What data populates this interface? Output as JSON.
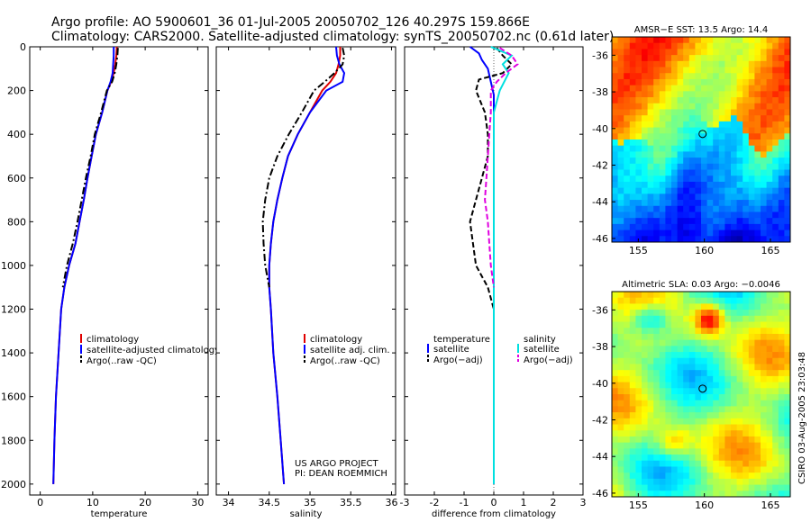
{
  "figure": {
    "title_line1": "Argo profile: AO 5900601_36 01-Jul-2005 20050702_126 40.297S 159.866E",
    "title_line2": "Climatology: CARS2000. Satellite-adjusted climatology: synTS_20050702.nc (0.61d later)",
    "project_line1": "US ARGO PROJECT",
    "project_line2": "PI: DEAN ROEMMICH",
    "credit": "CSIRO 03-Aug-2005 23:03:48"
  },
  "colors": {
    "climatology": "#e00000",
    "satellite": "#0000ff",
    "argo": "#000000",
    "salinity_satellite": "#00e0e0",
    "salinity_argo": "#e000e0"
  },
  "chart_data": [
    {
      "type": "line",
      "xlabel": "temperature",
      "ylabel": "",
      "xlim": [
        -2,
        32
      ],
      "ylim": [
        2050,
        0
      ],
      "y_inverted": true,
      "xticks": [
        "0",
        "10",
        "20",
        "30"
      ],
      "xtick_values": [
        0,
        10,
        20,
        30
      ],
      "yticks": [
        "0",
        "200",
        "400",
        "600",
        "800",
        "1000",
        "1200",
        "1400",
        "1600",
        "1800",
        "2000"
      ],
      "ytick_values": [
        0,
        200,
        400,
        600,
        800,
        1000,
        1200,
        1400,
        1600,
        1800,
        2000
      ],
      "legend": {
        "placement": "lower-right",
        "entries": [
          "climatology",
          "satellite-adjusted climatology",
          "Argo(..raw -QC)"
        ]
      },
      "series": [
        {
          "name": "climatology",
          "color": "#e00000",
          "dash": "solid",
          "x": [
            14.6,
            14.5,
            14.3,
            14.0,
            13.5,
            12.8,
            11.8,
            10.6,
            9.8,
            9.0,
            8.3,
            7.5,
            6.7,
            5.5,
            4.6,
            4.0,
            3.5,
            3.0,
            2.7,
            2.5
          ],
          "y": [
            0,
            40,
            80,
            120,
            160,
            200,
            300,
            400,
            500,
            600,
            700,
            800,
            900,
            1000,
            1100,
            1200,
            1400,
            1600,
            1800,
            2000
          ]
        },
        {
          "name": "satellite-adjusted climatology",
          "color": "#0000ff",
          "dash": "solid",
          "x": [
            14.0,
            14.0,
            13.9,
            13.8,
            13.4,
            12.8,
            11.8,
            10.6,
            9.8,
            9.0,
            8.3,
            7.5,
            6.7,
            5.5,
            4.6,
            4.0,
            3.5,
            3.0,
            2.7,
            2.5
          ],
          "y": [
            0,
            40,
            80,
            120,
            160,
            200,
            300,
            400,
            500,
            600,
            700,
            800,
            900,
            1000,
            1100,
            1200,
            1400,
            1600,
            1800,
            2000
          ]
        },
        {
          "name": "Argo(..raw -QC)",
          "color": "#000000",
          "dash": "dashdot",
          "x": [
            14.8,
            14.7,
            14.5,
            14.2,
            13.7,
            12.7,
            11.6,
            10.4,
            9.6,
            8.7,
            7.9,
            7.1,
            6.2,
            5.1,
            4.3
          ],
          "y": [
            5,
            40,
            80,
            120,
            160,
            200,
            300,
            400,
            500,
            600,
            700,
            800,
            900,
            1000,
            1100
          ]
        }
      ]
    },
    {
      "type": "line",
      "xlabel": "salinity",
      "xlim": [
        33.85,
        36.05
      ],
      "ylim": [
        2050,
        0
      ],
      "y_inverted": true,
      "xticks": [
        "34",
        "34.5",
        "35",
        "35.5",
        "36"
      ],
      "xtick_values": [
        34,
        34.5,
        35,
        35.5,
        36
      ],
      "legend": {
        "placement": "lower-right",
        "entries": [
          "climatology",
          "satellite adj. clim.",
          "Argo(..raw -QC)"
        ]
      },
      "series": [
        {
          "name": "climatology",
          "color": "#e00000",
          "dash": "solid",
          "x": [
            35.37,
            35.37,
            35.35,
            35.32,
            35.25,
            35.15,
            35.0,
            34.85,
            34.73,
            34.66,
            34.6,
            34.55,
            34.52,
            34.5,
            34.5,
            34.52,
            34.55,
            34.6,
            34.64,
            34.68
          ],
          "y": [
            0,
            40,
            80,
            120,
            160,
            200,
            300,
            400,
            500,
            600,
            700,
            800,
            900,
            1000,
            1100,
            1200,
            1400,
            1600,
            1800,
            2000
          ]
        },
        {
          "name": "satellite adj. clim.",
          "color": "#0000ff",
          "dash": "solid",
          "x": [
            35.32,
            35.33,
            35.36,
            35.42,
            35.4,
            35.2,
            35.0,
            34.85,
            34.73,
            34.66,
            34.6,
            34.55,
            34.52,
            34.5,
            34.5,
            34.52,
            34.55,
            34.6,
            34.64,
            34.68
          ],
          "y": [
            0,
            40,
            80,
            120,
            160,
            200,
            300,
            400,
            500,
            600,
            700,
            800,
            900,
            1000,
            1100,
            1200,
            1400,
            1600,
            1800,
            2000
          ]
        },
        {
          "name": "Argo(..raw -QC)",
          "color": "#000000",
          "dash": "dashdot",
          "x": [
            35.4,
            35.42,
            35.4,
            35.3,
            35.18,
            35.05,
            34.9,
            34.74,
            34.6,
            34.5,
            34.45,
            34.42,
            34.43,
            34.45,
            34.5
          ],
          "y": [
            5,
            40,
            80,
            120,
            160,
            200,
            300,
            400,
            500,
            600,
            700,
            800,
            900,
            1000,
            1100
          ]
        }
      ]
    },
    {
      "type": "line",
      "xlabel": "difference from climatology",
      "xlim": [
        -3,
        3
      ],
      "ylim": [
        2050,
        0
      ],
      "y_inverted": true,
      "xticks": [
        "-3",
        "-2",
        "-1",
        "0",
        "1",
        "2",
        "3"
      ],
      "xtick_values": [
        -3,
        -2,
        -1,
        0,
        1,
        2,
        3
      ],
      "legend": {
        "placement": "lower-center",
        "temperature_heading": "temperature",
        "salinity_heading": "salinity",
        "temperature_entries": [
          "satellite",
          "Argo(−adj)"
        ],
        "salinity_entries": [
          "satellite",
          "Argo(−adj)"
        ]
      },
      "series": [
        {
          "name": "temperature satellite",
          "color": "#0000ff",
          "dash": "solid",
          "x": [
            -0.8,
            -0.5,
            -0.4,
            -0.2,
            -0.1,
            0.0,
            0.0,
            0.0,
            0.0,
            0.0,
            0.0
          ],
          "y": [
            0,
            30,
            60,
            100,
            160,
            220,
            300,
            500,
            800,
            1200,
            2000
          ]
        },
        {
          "name": "temperature Argo(−adj)",
          "color": "#000000",
          "dash": "dashed",
          "x": [
            0.1,
            0.3,
            0.6,
            0.3,
            -0.5,
            -0.6,
            -0.3,
            -0.2,
            -0.2,
            -0.4,
            -0.6,
            -0.8,
            -0.7,
            -0.6,
            -0.2,
            0.0
          ],
          "y": [
            5,
            40,
            80,
            120,
            150,
            200,
            300,
            400,
            500,
            600,
            700,
            800,
            900,
            1000,
            1100,
            1200
          ]
        },
        {
          "name": "salinity satellite",
          "color": "#00e0e0",
          "dash": "solid",
          "x": [
            -0.1,
            0.6,
            0.3,
            0.5,
            0.2,
            0.0,
            0.0,
            0.0,
            0.0,
            0.0,
            0.0
          ],
          "y": [
            0,
            40,
            80,
            120,
            200,
            300,
            500,
            800,
            1200,
            1600,
            2000
          ]
        },
        {
          "name": "salinity Argo(−adj)",
          "color": "#e000e0",
          "dash": "dashed",
          "x": [
            0.2,
            0.6,
            0.8,
            0.4,
            0.1,
            -0.1,
            -0.1,
            -0.15,
            -0.2,
            -0.25,
            -0.3,
            -0.2,
            -0.15,
            -0.1,
            0.0
          ],
          "y": [
            5,
            40,
            80,
            120,
            160,
            200,
            300,
            400,
            500,
            600,
            700,
            800,
            900,
            1000,
            1100
          ]
        }
      ]
    },
    {
      "type": "heatmap",
      "title": "AMSR−E SST: 13.5 Argo: 14.4",
      "xlim": [
        153,
        166.5
      ],
      "ylim": [
        -46.2,
        -35.0
      ],
      "xticks": [
        "155",
        "160",
        "165"
      ],
      "xtick_values": [
        155,
        160,
        165
      ],
      "yticks": [
        "-36",
        "-38",
        "-40",
        "-42",
        "-44",
        "-46"
      ],
      "ytick_values": [
        -36,
        -38,
        -40,
        -42,
        -44,
        -46
      ],
      "marker": {
        "lon": 159.866,
        "lat": -40.297
      },
      "colormap": "jet"
    },
    {
      "type": "heatmap",
      "title": "Altimetric SLA: 0.03 Argo: −0.0046",
      "xlim": [
        153,
        166.5
      ],
      "ylim": [
        -46.2,
        -35.0
      ],
      "xticks": [
        "155",
        "160",
        "165"
      ],
      "xtick_values": [
        155,
        160,
        165
      ],
      "yticks": [
        "-36",
        "-38",
        "-40",
        "-42",
        "-44",
        "-46"
      ],
      "ytick_values": [
        -36,
        -38,
        -40,
        -42,
        -44,
        -46
      ],
      "marker": {
        "lon": 159.866,
        "lat": -40.297
      },
      "colormap": "jet"
    }
  ]
}
